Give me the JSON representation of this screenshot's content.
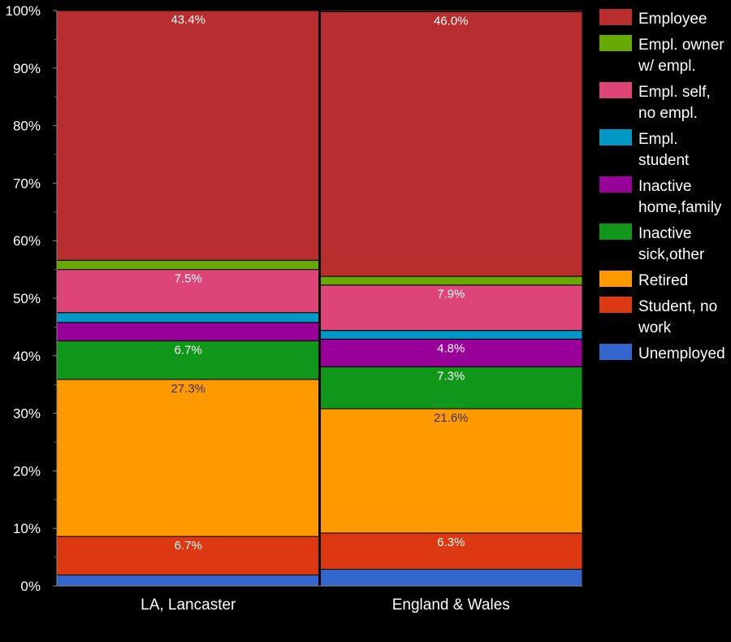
{
  "chart_data": {
    "type": "bar",
    "stacked": true,
    "title": "",
    "xlabel": "",
    "ylabel": "",
    "ylim": [
      0,
      100
    ],
    "ytick_labels": [
      "0%",
      "10%",
      "20%",
      "30%",
      "40%",
      "50%",
      "60%",
      "70%",
      "80%",
      "90%",
      "100%"
    ],
    "categories": [
      "LA, Lancaster",
      "England & Wales"
    ],
    "legend_position": "right",
    "series": [
      {
        "name": "Unemployed",
        "color": "#3366cc",
        "values": [
          1.9,
          2.9
        ],
        "labels": [
          "",
          ""
        ],
        "label_color": "#ffffff"
      },
      {
        "name": "Student, no work",
        "color": "#dc3912",
        "values": [
          6.7,
          6.3
        ],
        "labels": [
          "6.7%",
          "6.3%"
        ],
        "label_color": "#ffffff"
      },
      {
        "name": "Retired",
        "color": "#ff9900",
        "values": [
          27.3,
          21.6
        ],
        "labels": [
          "27.3%",
          "21.6%"
        ],
        "label_color": "#333333"
      },
      {
        "name": "Inactive sick,other",
        "color": "#109618",
        "values": [
          6.7,
          7.3
        ],
        "labels": [
          "6.7%",
          "7.3%"
        ],
        "label_color": "#ffffff"
      },
      {
        "name": "Inactive home,family",
        "color": "#990099",
        "values": [
          3.2,
          4.8
        ],
        "labels": [
          "",
          "4.8%"
        ],
        "label_color": "#ffffff"
      },
      {
        "name": "Empl. student",
        "color": "#0099c6",
        "values": [
          1.7,
          1.5
        ],
        "labels": [
          "",
          ""
        ],
        "label_color": "#ffffff"
      },
      {
        "name": "Empl. self, no empl.",
        "color": "#dd4477",
        "values": [
          7.5,
          7.9
        ],
        "labels": [
          "7.5%",
          "7.9%"
        ],
        "label_color": "#ffffff"
      },
      {
        "name": "Empl. owner w/ empl.",
        "color": "#66aa00",
        "values": [
          1.6,
          1.5
        ],
        "labels": [
          "",
          ""
        ],
        "label_color": "#ffffff"
      },
      {
        "name": "Employee",
        "color": "#b82e2e",
        "values": [
          43.4,
          46.0
        ],
        "labels": [
          "43.4%",
          "46.0%"
        ],
        "label_color": "#ffffff"
      }
    ],
    "legend": [
      {
        "lines": [
          "Employee"
        ],
        "color": "#b82e2e"
      },
      {
        "lines": [
          "Empl. owner",
          "w/ empl."
        ],
        "color": "#66aa00"
      },
      {
        "lines": [
          "Empl. self,",
          "no empl."
        ],
        "color": "#dd4477"
      },
      {
        "lines": [
          "Empl.",
          "student"
        ],
        "color": "#0099c6"
      },
      {
        "lines": [
          "Inactive",
          "home,family"
        ],
        "color": "#990099"
      },
      {
        "lines": [
          "Inactive",
          "sick,other"
        ],
        "color": "#109618"
      },
      {
        "lines": [
          "Retired"
        ],
        "color": "#ff9900"
      },
      {
        "lines": [
          "Student, no",
          "work"
        ],
        "color": "#dc3912"
      },
      {
        "lines": [
          "Unemployed"
        ],
        "color": "#3366cc"
      }
    ]
  }
}
